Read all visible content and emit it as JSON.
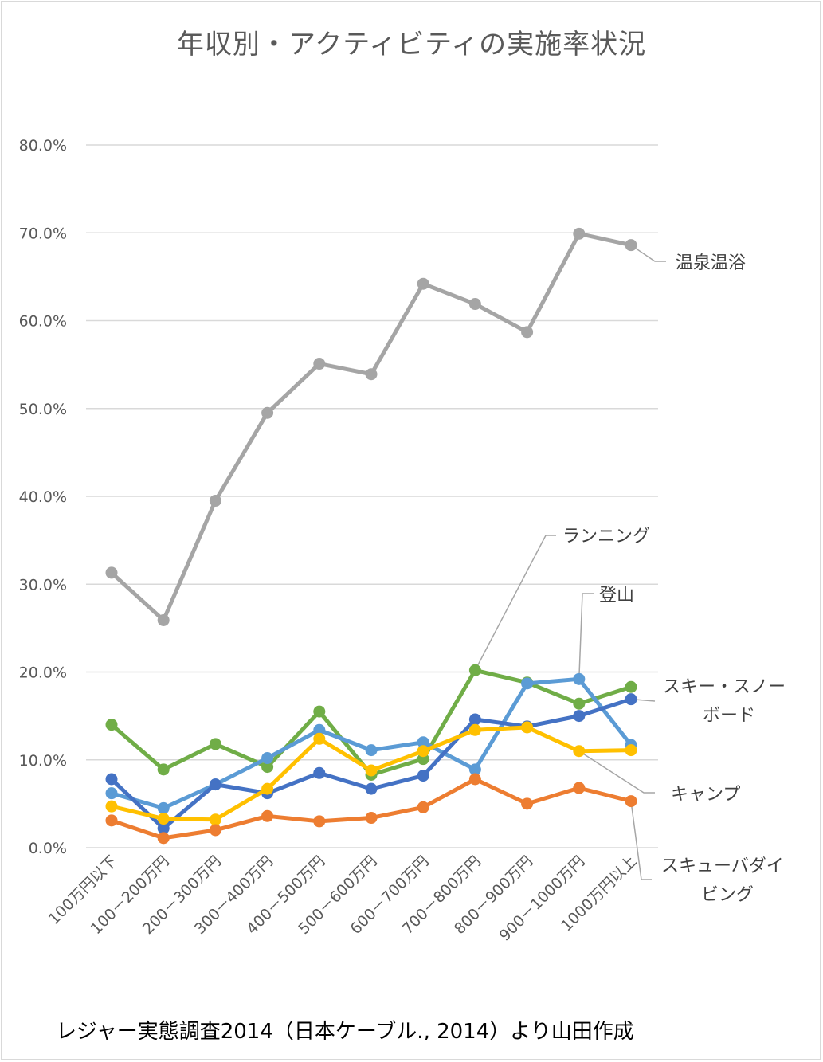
{
  "chart_data": {
    "type": "line",
    "title": "年収別・アクティビティの実施率状況",
    "categories": [
      "100万円以下",
      "100－200万円",
      "200－300万円",
      "300－400万円",
      "400－500万円",
      "500－600万円",
      "600－700万円",
      "700－800万円",
      "800－900万円",
      "900－1000万円",
      "1000万円以上"
    ],
    "ylim": [
      0,
      0.8
    ],
    "yticks": [
      "0.0%",
      "10.0%",
      "20.0%",
      "30.0%",
      "40.0%",
      "50.0%",
      "60.0%",
      "70.0%",
      "80.0%"
    ],
    "grid": true,
    "series": [
      {
        "name": "温泉温浴",
        "color": "#a5a5a5",
        "values": [
          0.313,
          0.259,
          0.395,
          0.495,
          0.551,
          0.539,
          0.642,
          0.619,
          0.587,
          0.699,
          0.686
        ],
        "label_lines": [
          "温泉温浴"
        ]
      },
      {
        "name": "ランニング",
        "color": "#70ad47",
        "values": [
          0.14,
          0.089,
          0.118,
          0.092,
          0.155,
          0.083,
          0.101,
          0.202,
          0.188,
          0.164,
          0.183
        ],
        "label_lines": [
          "ランニング"
        ]
      },
      {
        "name": "登山",
        "color": "#5b9bd5",
        "values": [
          0.062,
          0.045,
          0.072,
          0.102,
          0.134,
          0.111,
          0.12,
          0.089,
          0.187,
          0.192,
          0.117
        ],
        "label_lines": [
          "登山"
        ]
      },
      {
        "name": "スキー・スノーボード",
        "color": "#4472c4",
        "values": [
          0.078,
          0.022,
          0.072,
          0.062,
          0.085,
          0.067,
          0.082,
          0.146,
          0.138,
          0.15,
          0.169
        ],
        "label_lines": [
          "スキー・スノー",
          "ボード"
        ]
      },
      {
        "name": "キャンプ",
        "color": "#ffc000",
        "values": [
          0.047,
          0.033,
          0.032,
          0.067,
          0.124,
          0.088,
          0.11,
          0.134,
          0.137,
          0.11,
          0.111
        ],
        "label_lines": [
          "キャンプ"
        ]
      },
      {
        "name": "スキューバダイビング",
        "color": "#ed7d31",
        "values": [
          0.031,
          0.011,
          0.02,
          0.036,
          0.03,
          0.034,
          0.046,
          0.078,
          0.05,
          0.068,
          0.053
        ],
        "label_lines": [
          "スキューバダイ",
          "ビング"
        ]
      }
    ]
  },
  "source_note": "レジャー実態調査2014（日本ケーブル., 2014）より山田作成"
}
